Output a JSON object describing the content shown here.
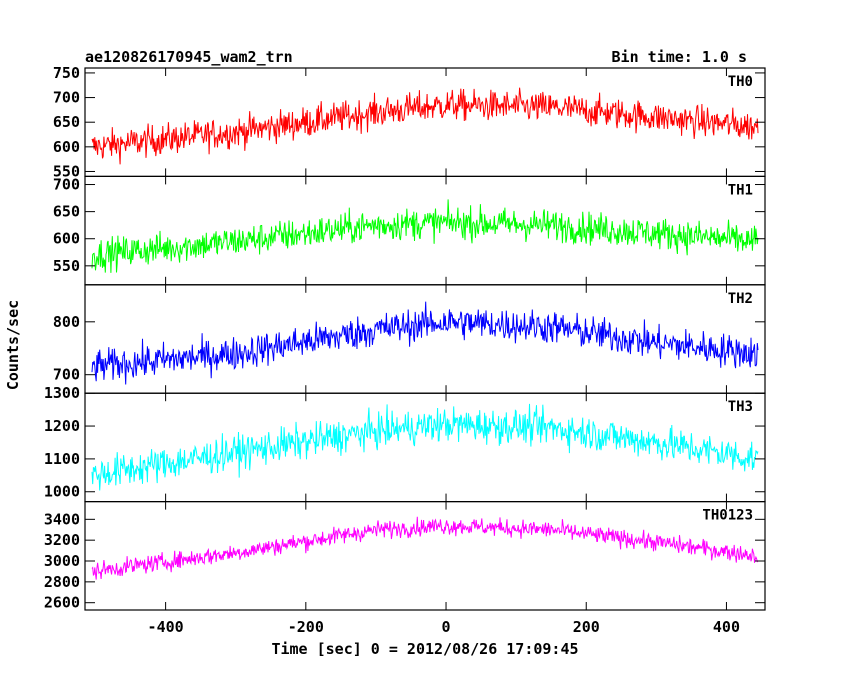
{
  "header": {
    "left_title": "ae120826170945_wam2_trn",
    "right_title": "Bin time: 1.0 s"
  },
  "chart_data": {
    "type": "line",
    "xlabel": "Time [sec] 0 = 2012/08/26 17:09:45",
    "ylabel": "Counts/sec",
    "xlim": [
      -515,
      455
    ],
    "data_x_range": [
      -505,
      445
    ],
    "bin_time": 1.0,
    "x_ticks": [
      -400,
      -200,
      0,
      200,
      400
    ],
    "panels": [
      {
        "name": "TH0",
        "color": "#ff0000",
        "ylim": [
          540,
          760
        ],
        "yticks": [
          550,
          600,
          650,
          700,
          750
        ],
        "trend": [
          [
            -505,
            600
          ],
          [
            -300,
            630
          ],
          [
            -100,
            670
          ],
          [
            0,
            685
          ],
          [
            150,
            680
          ],
          [
            300,
            660
          ],
          [
            445,
            640
          ]
        ],
        "noise": 30
      },
      {
        "name": "TH1",
        "color": "#00ff00",
        "ylim": [
          515,
          715
        ],
        "yticks": [
          550,
          600,
          650,
          700
        ],
        "trend": [
          [
            -505,
            570
          ],
          [
            -300,
            595
          ],
          [
            -100,
            625
          ],
          [
            0,
            630
          ],
          [
            150,
            625
          ],
          [
            300,
            610
          ],
          [
            445,
            595
          ]
        ],
        "noise": 28
      },
      {
        "name": "TH2",
        "color": "#0000ff",
        "ylim": [
          665,
          870
        ],
        "yticks": [
          700,
          800
        ],
        "trend": [
          [
            -505,
            715
          ],
          [
            -300,
            740
          ],
          [
            -100,
            785
          ],
          [
            0,
            800
          ],
          [
            150,
            790
          ],
          [
            300,
            760
          ],
          [
            445,
            740
          ]
        ],
        "noise": 30
      },
      {
        "name": "TH3",
        "color": "#00ffff",
        "ylim": [
          970,
          1300
        ],
        "yticks": [
          1000,
          1100,
          1200,
          1300
        ],
        "trend": [
          [
            -505,
            1050
          ],
          [
            -300,
            1120
          ],
          [
            -100,
            1185
          ],
          [
            0,
            1205
          ],
          [
            150,
            1195
          ],
          [
            300,
            1150
          ],
          [
            445,
            1100
          ]
        ],
        "noise": 50
      },
      {
        "name": "TH0123",
        "color": "#ff00ff",
        "ylim": [
          2530,
          3570
        ],
        "yticks": [
          2600,
          2800,
          3000,
          3200,
          3400
        ],
        "trend": [
          [
            -505,
            2900
          ],
          [
            -300,
            3080
          ],
          [
            -100,
            3300
          ],
          [
            0,
            3340
          ],
          [
            150,
            3300
          ],
          [
            300,
            3180
          ],
          [
            445,
            3050
          ]
        ],
        "noise": 80
      }
    ]
  }
}
